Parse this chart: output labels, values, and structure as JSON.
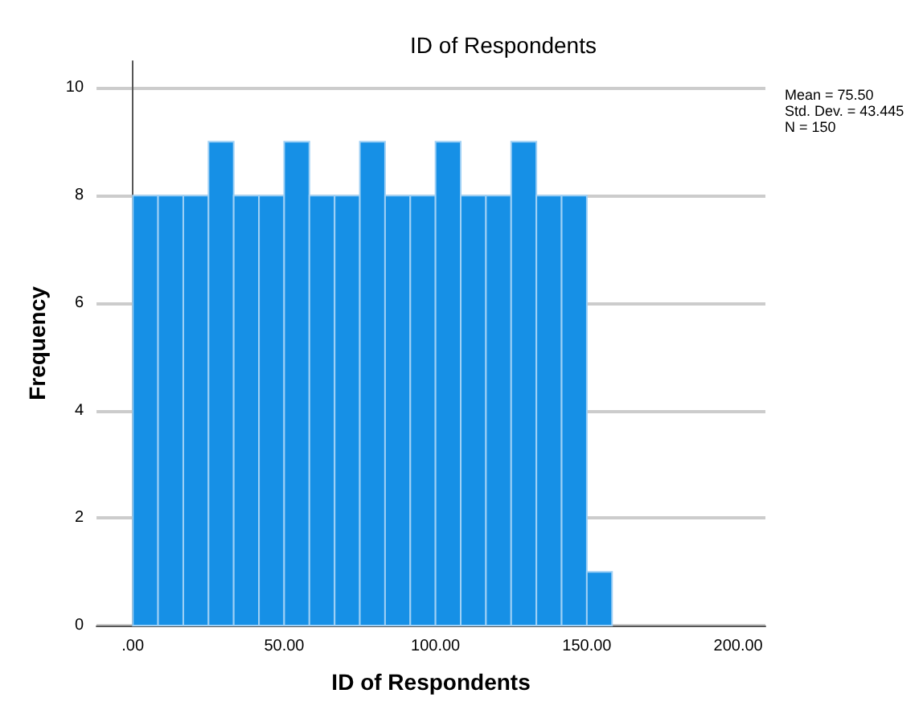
{
  "chart_data": {
    "type": "histogram",
    "title": "ID of Respondents",
    "xlabel": "ID of Respondents",
    "ylabel": "Frequency",
    "bins": [
      0,
      8.33,
      16.67,
      25,
      33.33,
      41.67,
      50,
      58.33,
      66.67,
      75,
      83.33,
      91.67,
      100,
      108.33,
      116.67,
      125,
      133.33,
      141.67,
      150,
      158.33
    ],
    "values": [
      8,
      8,
      8,
      9,
      8,
      8,
      9,
      8,
      8,
      9,
      8,
      8,
      9,
      8,
      8,
      9,
      8,
      8,
      1
    ],
    "color": "#1690e6",
    "xlim": [
      -12,
      209
    ],
    "xticks": [
      {
        "value": 0,
        "label": ".00"
      },
      {
        "value": 50,
        "label": "50.00"
      },
      {
        "value": 100,
        "label": "100.00"
      },
      {
        "value": 150,
        "label": "150.00"
      },
      {
        "value": 200,
        "label": "200.00"
      }
    ],
    "ylim": [
      0,
      10.5
    ],
    "yticks": [
      0,
      2,
      4,
      6,
      8,
      10
    ],
    "grid": "y",
    "annotations": [
      "Mean = 75.50\nStd. Dev. = 43.445\nN = 150"
    ]
  }
}
